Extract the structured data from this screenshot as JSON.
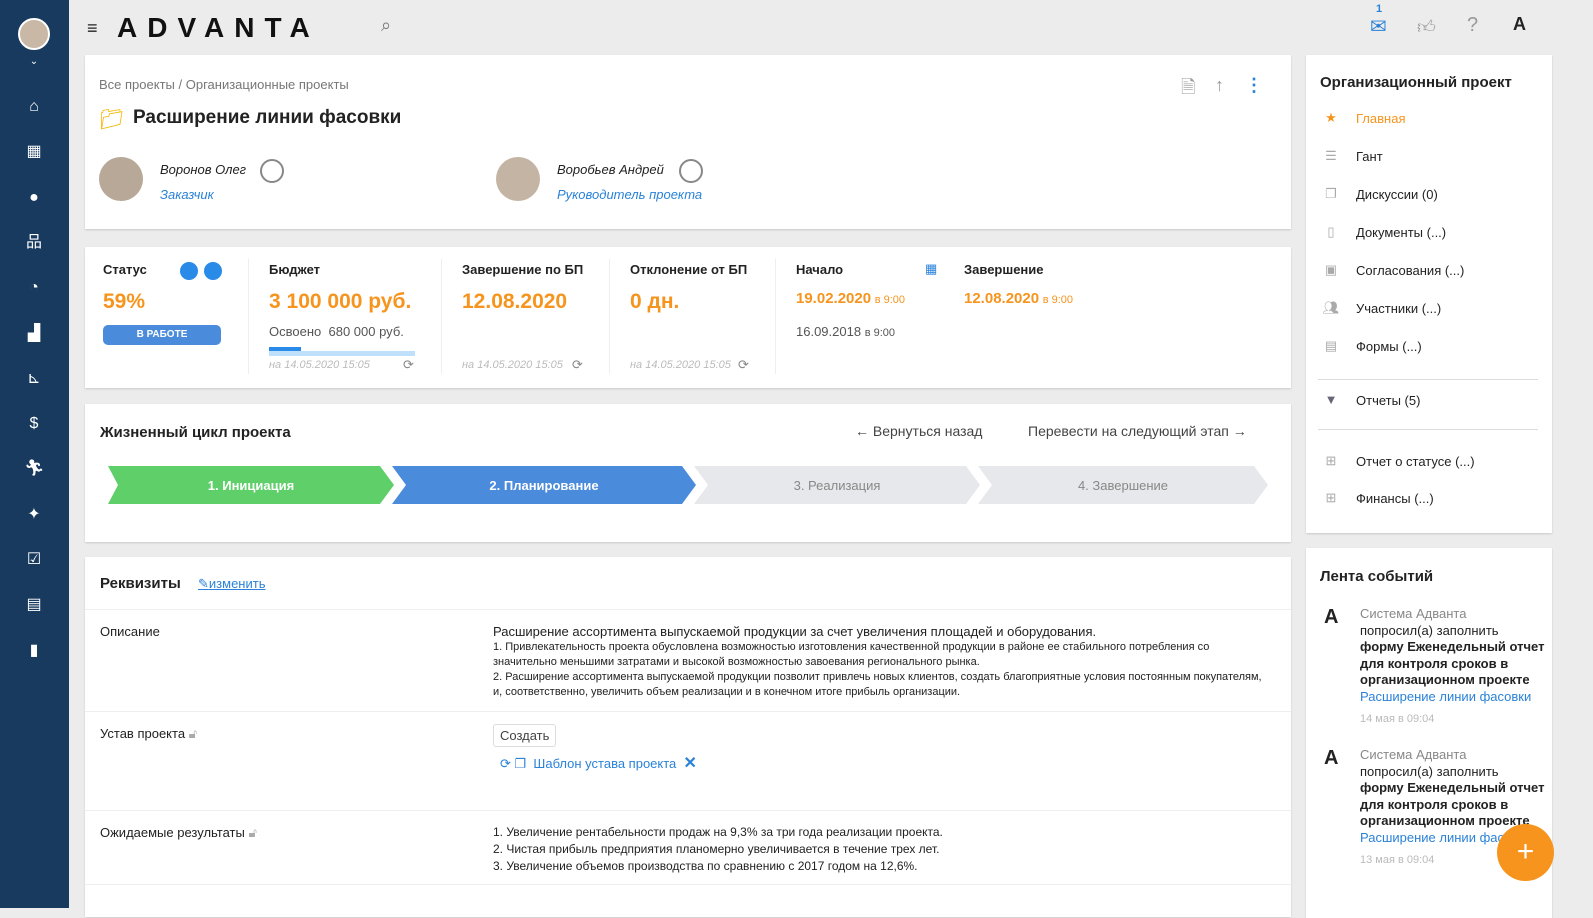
{
  "topbar": {
    "logo": "ADVANTA",
    "mail_count": "1"
  },
  "breadcrumb": {
    "root": "Все проекты",
    "sep": "/",
    "current": "Организационные проекты"
  },
  "project": {
    "title": "Расширение линии фасовки",
    "people": [
      {
        "name": "Воронов Олег",
        "role": "Заказчик"
      },
      {
        "name": "Воробьев Андрей",
        "role": "Руководитель проекта"
      }
    ]
  },
  "stats": {
    "status": {
      "label": "Статус",
      "percent": "59%",
      "badge": "В РАБОТЕ"
    },
    "budget": {
      "label": "Бюджет",
      "value": "3 100 000 руб.",
      "spent_label": "Освоено",
      "spent": "680 000 руб.",
      "progress": 0.22,
      "updated": "на 14.05.2020 15:05"
    },
    "bp_end": {
      "label": "Завершение по БП",
      "value": "12.08.2020",
      "updated": "на 14.05.2020 15:05"
    },
    "deviation": {
      "label": "Отклонение от БП",
      "value": "0 дн.",
      "updated": "на 14.05.2020 15:05"
    },
    "start": {
      "label": "Начало",
      "value": "19.02.2020",
      "time": "в 9:00",
      "planned": "16.09.2018",
      "planned_time": "в 9:00"
    },
    "end": {
      "label": "Завершение",
      "value": "12.08.2020",
      "time": "в 9:00"
    }
  },
  "lifecycle": {
    "title": "Жизненный цикл проекта",
    "back": "Вернуться назад",
    "next": "Перевести на следующий этап",
    "stages": [
      "1. Инициация",
      "2. Планирование",
      "3. Реализация",
      "4. Завершение"
    ]
  },
  "requisites": {
    "title": "Реквизиты",
    "edit": "изменить",
    "description_label": "Описание",
    "description": [
      "Расширение ассортимента выпускаемой продукции за счет увеличения площадей и оборудования.",
      "1. Привлекательность проекта обусловлена возможностью изготовления качественной продукции в районе ее стабильного потребления со значительно меньшими затратами и высокой возможностью завоевания регионального рынка.",
      "2. Расширение ассортимента выпускаемой продукции позволит привлечь новых клиентов, создать благоприятные условия постоянным покупателям, и, соответственно, увеличить объем реализации и в конечном итоге прибыль организации."
    ],
    "charter_label": "Устав проекта",
    "create": "Создать",
    "template": "Шаблон устава проекта",
    "results_label": "Ожидаемые результаты",
    "results": [
      "1. Увеличение рентабельности продаж на 9,3% за три года реализации проекта.",
      "2. Чистая прибыль предприятия планомерно увеличивается в течение трех лет.",
      "3. Увеличение объемов производства по сравнению с 2017 годом на 12,6%."
    ]
  },
  "right_menu": {
    "title": "Организационный проект",
    "items": [
      {
        "label": "Главная",
        "icon": "star"
      },
      {
        "label": "Гант",
        "icon": "gantt"
      },
      {
        "label": "Дискуссии (0)",
        "icon": "chat"
      },
      {
        "label": "Документы (...)",
        "icon": "doc"
      },
      {
        "label": "Согласования (...)",
        "icon": "clipboard"
      },
      {
        "label": "Участники (...)",
        "icon": "people"
      },
      {
        "label": "Формы (...)",
        "icon": "table"
      }
    ],
    "reports": "Отчеты (5)",
    "reports_items": [
      "Отчет о статусе (...)",
      "Финансы (...)"
    ]
  },
  "feed": {
    "title": "Лента событий",
    "events": [
      {
        "author": "Система Адванта",
        "text": "попросил(а) заполнить",
        "bold": "форму Еженедельный отчет для контроля сроков в организационном проекте",
        "link": "Расширение линии фасовки",
        "time": "14 мая в 09:04"
      },
      {
        "author": "Система Адванта",
        "text": "попросил(а) заполнить",
        "bold": "форму Еженедельный отчет для контроля сроков в организационном проекте",
        "link": "Расширение линии фасовки",
        "time": "13 мая в 09:04"
      }
    ]
  },
  "colors": {
    "sidebar": "#173a5e",
    "accent": "#f7941d",
    "blue": "#4a8bdc",
    "green": "#5fcf6a"
  }
}
